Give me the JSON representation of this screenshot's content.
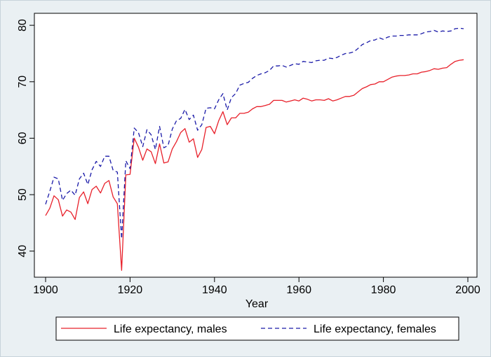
{
  "chart_data": {
    "type": "line",
    "title": "",
    "xlabel": "Year",
    "ylabel": "",
    "xlim": [
      1900,
      2000
    ],
    "ylim": [
      36,
      82
    ],
    "xticks": [
      1900,
      1920,
      1940,
      1960,
      1980,
      2000
    ],
    "yticks": [
      40,
      50,
      60,
      70,
      80
    ],
    "grid": false,
    "legend": "bottom",
    "series": [
      {
        "name": "Life expectancy, males",
        "color": "#e8202a",
        "style": "solid",
        "x": [
          1900,
          1901,
          1902,
          1903,
          1904,
          1905,
          1906,
          1907,
          1908,
          1909,
          1910,
          1911,
          1912,
          1913,
          1914,
          1915,
          1916,
          1917,
          1918,
          1919,
          1920,
          1921,
          1922,
          1923,
          1924,
          1925,
          1926,
          1927,
          1928,
          1929,
          1930,
          1931,
          1932,
          1933,
          1934,
          1935,
          1936,
          1937,
          1938,
          1939,
          1940,
          1941,
          1942,
          1943,
          1944,
          1945,
          1946,
          1947,
          1948,
          1949,
          1950,
          1951,
          1952,
          1953,
          1954,
          1955,
          1956,
          1957,
          1958,
          1959,
          1960,
          1961,
          1962,
          1963,
          1964,
          1965,
          1966,
          1967,
          1968,
          1969,
          1970,
          1971,
          1972,
          1973,
          1974,
          1975,
          1976,
          1977,
          1978,
          1979,
          1980,
          1981,
          1982,
          1983,
          1984,
          1985,
          1986,
          1987,
          1988,
          1989,
          1990,
          1991,
          1992,
          1993,
          1994,
          1995,
          1996,
          1997,
          1998,
          1999
        ],
        "values": [
          46.3,
          47.6,
          49.8,
          49.1,
          46.2,
          47.3,
          46.9,
          45.6,
          49.5,
          50.5,
          48.4,
          50.9,
          51.5,
          50.3,
          52.0,
          52.5,
          49.6,
          48.4,
          36.6,
          53.5,
          53.6,
          60.0,
          58.4,
          56.1,
          58.1,
          57.6,
          55.5,
          59.0,
          55.6,
          55.8,
          58.1,
          59.4,
          61.0,
          61.7,
          59.3,
          59.9,
          56.6,
          58.0,
          61.9,
          62.1,
          60.8,
          63.1,
          64.7,
          62.4,
          63.6,
          63.6,
          64.4,
          64.4,
          64.6,
          65.2,
          65.6,
          65.6,
          65.8,
          66.0,
          66.7,
          66.7,
          66.7,
          66.4,
          66.6,
          66.8,
          66.6,
          67.1,
          66.9,
          66.6,
          66.8,
          66.8,
          66.7,
          67.0,
          66.6,
          66.8,
          67.1,
          67.4,
          67.4,
          67.6,
          68.2,
          68.8,
          69.1,
          69.5,
          69.6,
          70.0,
          70.0,
          70.4,
          70.8,
          71.0,
          71.1,
          71.1,
          71.2,
          71.4,
          71.4,
          71.7,
          71.8,
          72.0,
          72.3,
          72.2,
          72.4,
          72.5,
          73.1,
          73.6,
          73.8,
          73.9
        ]
      },
      {
        "name": "Life expectancy, females",
        "color": "#1a1aa8",
        "style": "dashed",
        "x": [
          1900,
          1901,
          1902,
          1903,
          1904,
          1905,
          1906,
          1907,
          1908,
          1909,
          1910,
          1911,
          1912,
          1913,
          1914,
          1915,
          1916,
          1917,
          1918,
          1919,
          1920,
          1921,
          1922,
          1923,
          1924,
          1925,
          1926,
          1927,
          1928,
          1929,
          1930,
          1931,
          1932,
          1933,
          1934,
          1935,
          1936,
          1937,
          1938,
          1939,
          1940,
          1941,
          1942,
          1943,
          1944,
          1945,
          1946,
          1947,
          1948,
          1949,
          1950,
          1951,
          1952,
          1953,
          1954,
          1955,
          1956,
          1957,
          1958,
          1959,
          1960,
          1961,
          1962,
          1963,
          1964,
          1965,
          1966,
          1967,
          1968,
          1969,
          1970,
          1971,
          1972,
          1973,
          1974,
          1975,
          1976,
          1977,
          1978,
          1979,
          1980,
          1981,
          1982,
          1983,
          1984,
          1985,
          1986,
          1987,
          1988,
          1989,
          1990,
          1991,
          1992,
          1993,
          1994,
          1995,
          1996,
          1997,
          1998,
          1999
        ],
        "values": [
          48.3,
          50.6,
          53.1,
          52.8,
          49.0,
          50.2,
          50.8,
          49.9,
          52.8,
          53.8,
          51.8,
          54.4,
          55.9,
          55.0,
          56.8,
          56.8,
          54.3,
          54.0,
          42.2,
          56.0,
          54.6,
          61.8,
          61.0,
          58.5,
          61.5,
          60.6,
          58.0,
          62.1,
          58.3,
          58.7,
          61.6,
          63.1,
          63.5,
          65.1,
          63.3,
          64.1,
          61.4,
          62.4,
          65.3,
          65.4,
          65.2,
          66.8,
          67.9,
          65.0,
          67.2,
          67.9,
          69.4,
          69.7,
          69.9,
          70.6,
          71.1,
          71.4,
          71.6,
          72.0,
          72.8,
          72.8,
          72.9,
          72.6,
          72.9,
          73.2,
          73.1,
          73.6,
          73.5,
          73.4,
          73.7,
          73.8,
          73.8,
          74.2,
          74.1,
          74.3,
          74.7,
          75.0,
          75.1,
          75.3,
          75.9,
          76.6,
          76.9,
          77.3,
          77.4,
          77.8,
          77.5,
          77.9,
          78.1,
          78.1,
          78.2,
          78.2,
          78.3,
          78.3,
          78.3,
          78.5,
          78.8,
          78.9,
          79.1,
          78.8,
          79.0,
          78.9,
          79.0,
          79.4,
          79.5,
          79.4
        ]
      }
    ]
  }
}
